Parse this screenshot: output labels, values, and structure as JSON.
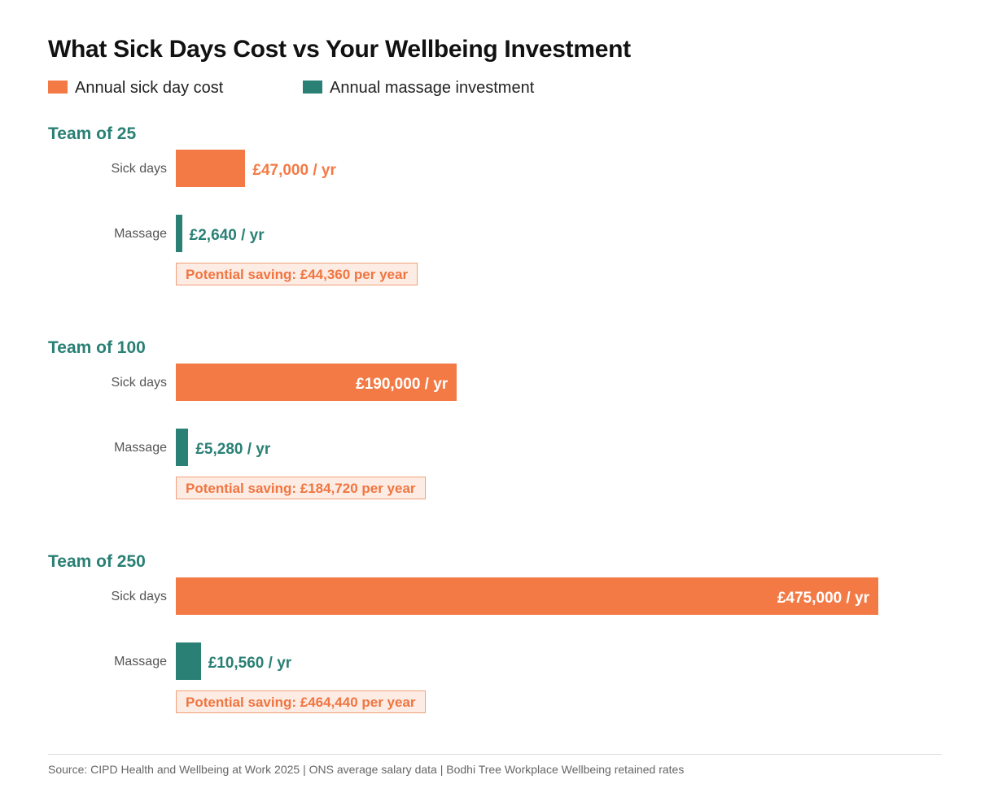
{
  "chart_data": {
    "type": "bar",
    "title": "What Sick Days Cost vs Your Wellbeing Investment",
    "legend": [
      {
        "name": "Annual sick day cost",
        "color": "#f47a45"
      },
      {
        "name": "Annual massage investment",
        "color": "#2a8075"
      }
    ],
    "legend_placement": "top-left",
    "xlim": [
      0,
      475000
    ],
    "categories": [
      "Team of 25",
      "Team of 100",
      "Team of 250"
    ],
    "series": [
      {
        "name": "Annual sick day cost",
        "values": [
          47000,
          190000,
          475000
        ]
      },
      {
        "name": "Annual massage investment",
        "values": [
          2640,
          5280,
          10560
        ]
      }
    ],
    "groups": [
      {
        "title": "Team of 25",
        "cost_label": "Sick days",
        "cost_value": 47000,
        "cost_text": "£47,000 / yr",
        "invest_label": "Massage",
        "invest_value": 2640,
        "invest_text": "£2,640 / yr",
        "saving_text": "Potential saving: £44,360 per year"
      },
      {
        "title": "Team of 100",
        "cost_label": "Sick days",
        "cost_value": 190000,
        "cost_text": "£190,000 / yr",
        "invest_label": "Massage",
        "invest_value": 5280,
        "invest_text": "£5,280 / yr",
        "saving_text": "Potential saving: £184,720 per year"
      },
      {
        "title": "Team of 250",
        "cost_label": "Sick days",
        "cost_value": 475000,
        "cost_text": "£475,000 / yr",
        "invest_label": "Massage",
        "invest_value": 10560,
        "invest_text": "£10,560 / yr",
        "saving_text": "Potential saving: £464,440 per year"
      }
    ],
    "grid": false
  },
  "footer": {
    "sources": [
      "Source: CIPD Health and Wellbeing at Work 2025",
      "ONS average salary data",
      "Bodhi Tree Workplace Wellbeing retained rates"
    ],
    "separator": "|"
  },
  "colors": {
    "cost": "#f47a45",
    "invest": "#2a8075",
    "title": "#111111",
    "group_title": "#2a8075"
  }
}
